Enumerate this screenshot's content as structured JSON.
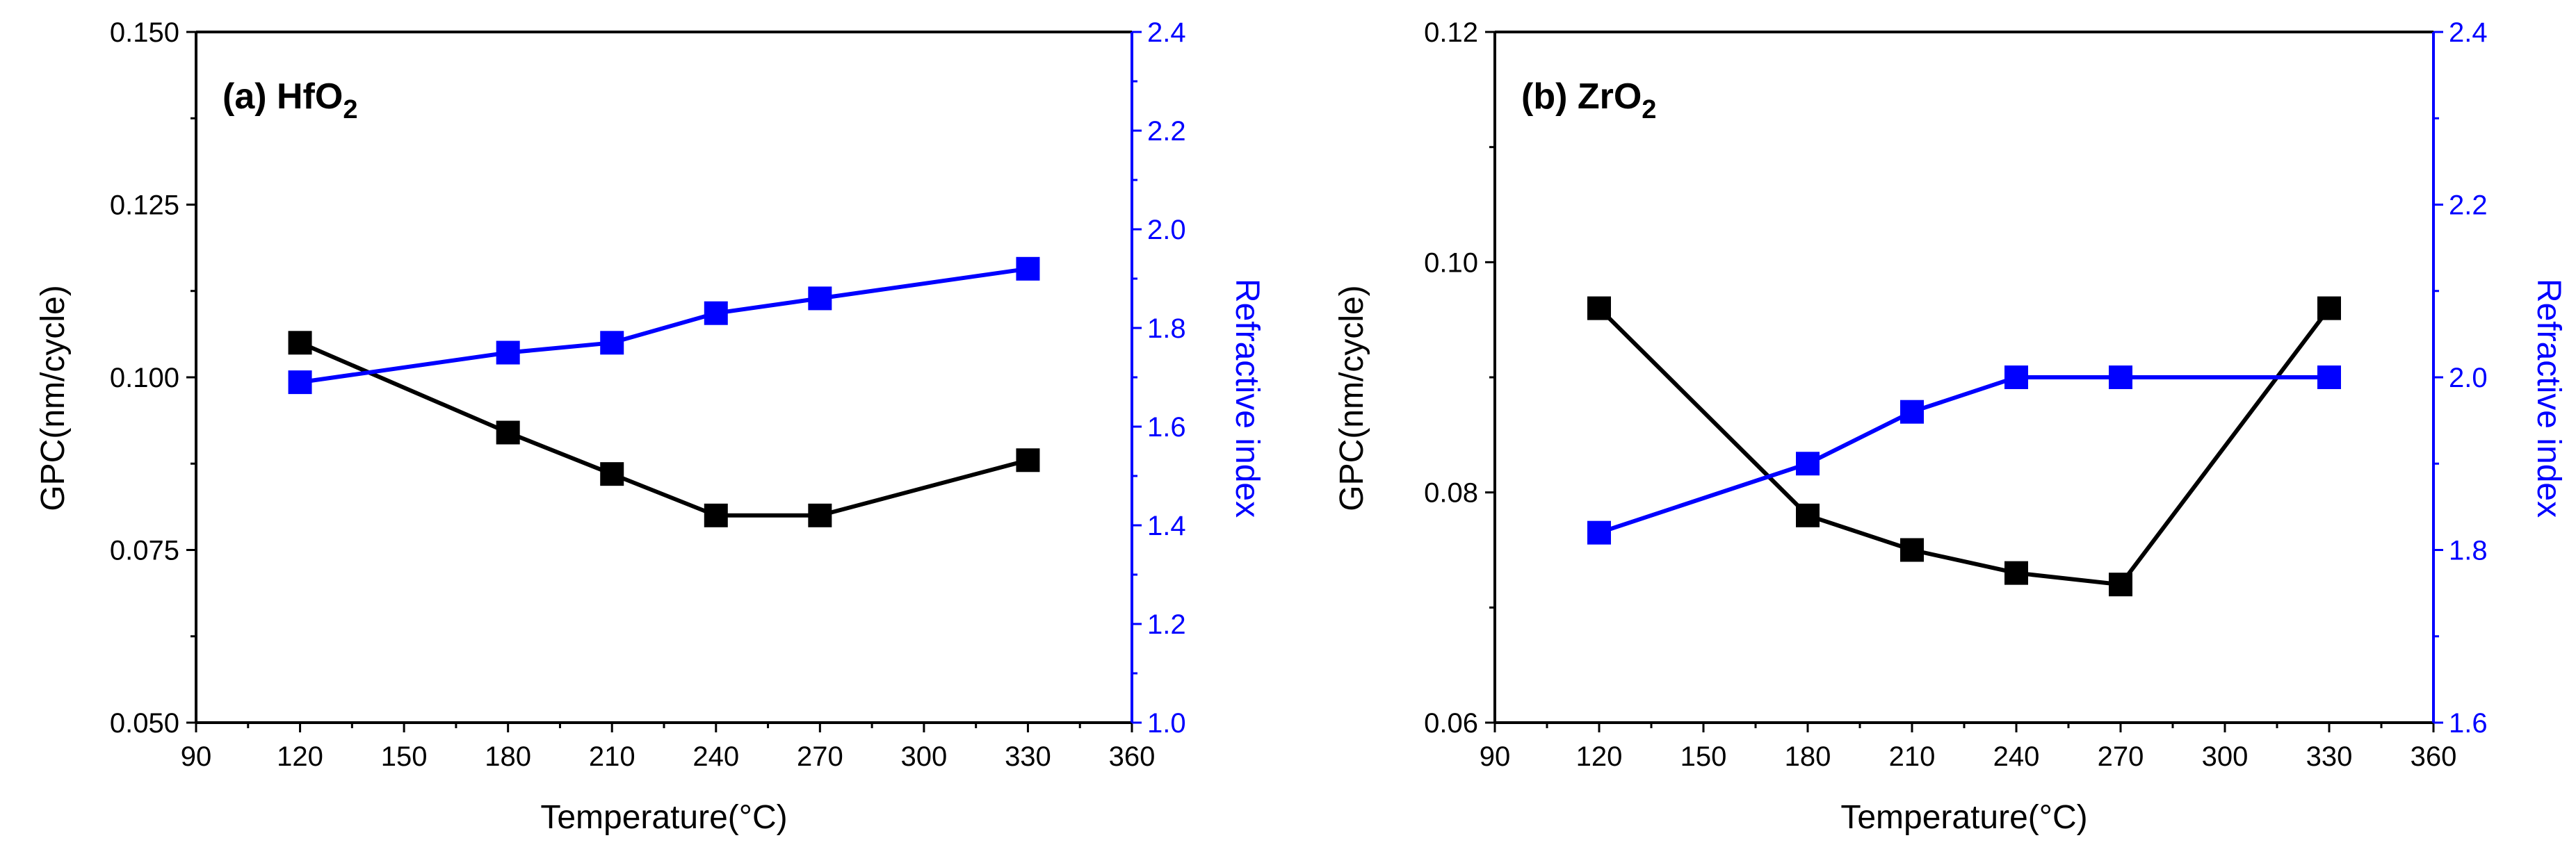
{
  "colors": {
    "primary": "#000000",
    "secondary": "#0000ff"
  },
  "icons": {
    "primary_marker": "square-marker",
    "secondary_marker": "square-marker"
  },
  "chart_data": [
    {
      "type": "line",
      "title": "(a) HfO",
      "title_subscript": "2",
      "xlabel": "Temperature(°C)",
      "ylabel": "GPC(nm/cycle)",
      "y2label": "Refractive index",
      "xlim": [
        90,
        360
      ],
      "xticks": [
        90,
        120,
        150,
        180,
        210,
        240,
        270,
        300,
        330,
        360
      ],
      "ylim": [
        0.05,
        0.15
      ],
      "yticks": [
        "0.050",
        "0.075",
        "0.100",
        "0.125",
        "0.150"
      ],
      "yticks_values": [
        0.05,
        0.075,
        0.1,
        0.125,
        0.15
      ],
      "y2lim": [
        1.0,
        2.4
      ],
      "y2ticks": [
        "1.0",
        "1.2",
        "1.4",
        "1.6",
        "1.8",
        "2.0",
        "2.2",
        "2.4"
      ],
      "y2ticks_values": [
        1.0,
        1.2,
        1.4,
        1.6,
        1.8,
        2.0,
        2.2,
        2.4
      ],
      "x": [
        120,
        180,
        210,
        240,
        270,
        330
      ],
      "series": [
        {
          "name": "GPC",
          "axis": "left",
          "values": [
            0.105,
            0.092,
            0.086,
            0.08,
            0.08,
            0.088
          ]
        },
        {
          "name": "Refractive index",
          "axis": "right",
          "values": [
            1.69,
            1.75,
            1.77,
            1.83,
            1.86,
            1.92
          ]
        }
      ]
    },
    {
      "type": "line",
      "title": "(b) ZrO",
      "title_subscript": "2",
      "xlabel": "Temperature(°C)",
      "ylabel": "GPC(nm/cycle)",
      "y2label": "Refractive index",
      "xlim": [
        90,
        360
      ],
      "xticks": [
        90,
        120,
        150,
        180,
        210,
        240,
        270,
        300,
        330,
        360
      ],
      "ylim": [
        0.06,
        0.12
      ],
      "yticks": [
        "0.06",
        "0.08",
        "0.10",
        "0.12"
      ],
      "yticks_values": [
        0.06,
        0.08,
        0.1,
        0.12
      ],
      "y2lim": [
        1.6,
        2.4
      ],
      "y2ticks": [
        "1.6",
        "1.8",
        "2.0",
        "2.2",
        "2.4"
      ],
      "y2ticks_values": [
        1.6,
        1.8,
        2.0,
        2.2,
        2.4
      ],
      "x": [
        120,
        180,
        210,
        240,
        270,
        330
      ],
      "series": [
        {
          "name": "GPC",
          "axis": "left",
          "values": [
            0.096,
            0.078,
            0.075,
            0.073,
            0.072,
            0.096
          ]
        },
        {
          "name": "Refractive index",
          "axis": "right",
          "values": [
            1.82,
            1.9,
            1.96,
            2.0,
            2.0,
            2.0
          ]
        }
      ]
    }
  ]
}
